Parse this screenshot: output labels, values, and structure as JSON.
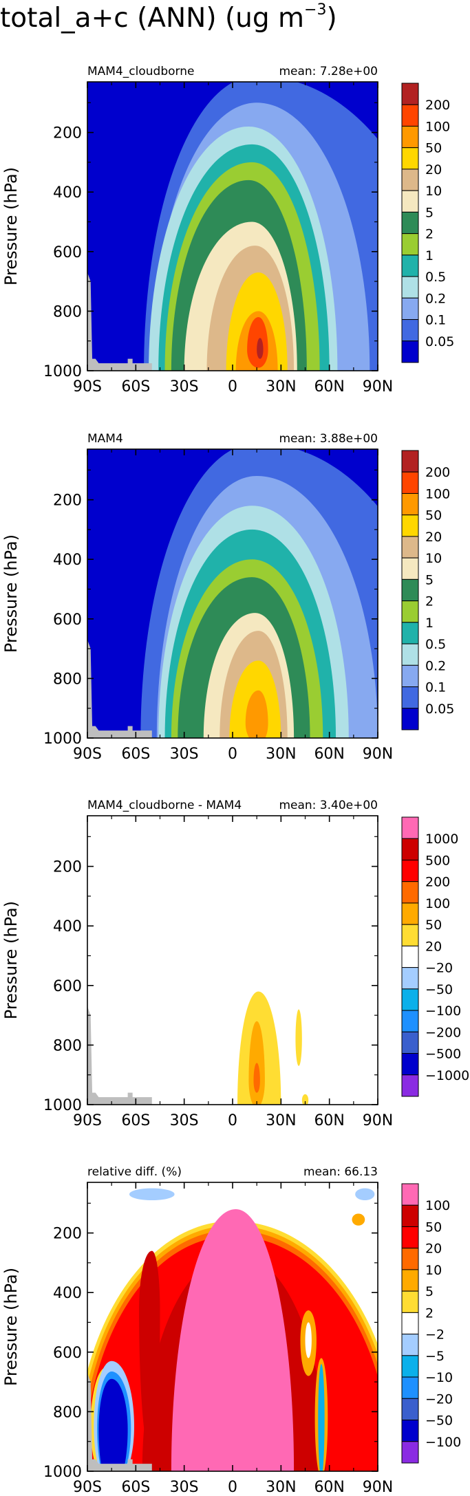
{
  "page": {
    "title_main": "total_a+c (ANN) (ug m",
    "title_sup": "−3",
    "title_close": ")"
  },
  "chart_data": [
    {
      "type": "heatmap",
      "title_left": "MAM4_cloudborne",
      "title_right": "mean:  7.28e+00",
      "ylabel": "Pressure (hPa)",
      "yticks": [
        "200",
        "400",
        "600",
        "800",
        "1000"
      ],
      "ytick_values": [
        200,
        400,
        600,
        800,
        1000
      ],
      "xticks": [
        "90S",
        "60S",
        "30S",
        "0",
        "30N",
        "60N",
        "90N"
      ],
      "xtick_values": [
        -90,
        -60,
        -30,
        0,
        30,
        60,
        90
      ],
      "xlim": [
        -90,
        90
      ],
      "ylim": [
        1000,
        30
      ],
      "legend_labels": [
        "200",
        "100",
        "50",
        "20",
        "10",
        "5",
        "2",
        "1",
        "0.5",
        "0.2",
        "0.1",
        "0.05"
      ],
      "legend_colors": [
        "#b22222",
        "#ff4500",
        "#ff9900",
        "#ffd700",
        "#ddb88a",
        "#f5e8c0",
        "#2e8b57",
        "#9acd32",
        "#20b2aa",
        "#afe0e6",
        "#87a9f0",
        "#4169e1",
        "#0000cd"
      ],
      "background_color": "#0000cd",
      "colors": [
        "#4169e1",
        "#87a9f0",
        "#afe0e6",
        "#20b2aa",
        "#9acd32",
        "#2e8b57",
        "#f5e8c0",
        "#ddb88a",
        "#ffd700",
        "#ff9900",
        "#ff4500",
        "#b22222"
      ],
      "blobs": [
        {
          "lat": 15,
          "p": 1000,
          "wl": 70,
          "wr": 120,
          "up": 990,
          "dn": 100,
          "m": 0
        },
        {
          "lat": 15,
          "p": 1000,
          "wl": 65,
          "wr": 70,
          "up": 900,
          "dn": 100,
          "m": 1
        },
        {
          "lat": 10,
          "p": 1000,
          "wl": 62,
          "wr": 55,
          "up": 820,
          "dn": 100,
          "m": 2
        },
        {
          "lat": 12,
          "p": 1000,
          "wl": 58,
          "wr": 48,
          "up": 760,
          "dn": 100,
          "m": 3
        },
        {
          "lat": 12,
          "p": 1000,
          "wl": 54,
          "wr": 42,
          "up": 700,
          "dn": 100,
          "m": 4
        },
        {
          "lat": 10,
          "p": 1000,
          "wl": 48,
          "wr": 36,
          "up": 640,
          "dn": 100,
          "m": 5
        },
        {
          "lat": 12,
          "p": 1000,
          "wl": 42,
          "wr": 28,
          "up": 500,
          "dn": 100,
          "m": 6
        },
        {
          "lat": 14,
          "p": 1000,
          "wl": 30,
          "wr": 24,
          "up": 420,
          "dn": 100,
          "m": 7
        },
        {
          "lat": 16,
          "p": 1000,
          "wl": 20,
          "wr": 18,
          "up": 330,
          "dn": 100,
          "m": 8
        },
        {
          "lat": 16,
          "p": 1000,
          "wl": 14,
          "wr": 12,
          "up": 200,
          "dn": 100,
          "m": 9
        },
        {
          "lat": 16,
          "p": 930,
          "wl": 7,
          "wr": 6,
          "up": 110,
          "dn": 60,
          "m": 10
        },
        {
          "lat": 17,
          "p": 930,
          "wl": 2,
          "wr": 2,
          "up": 40,
          "dn": 30,
          "m": 11
        }
      ],
      "terrain": [
        [
          -90,
          670
        ],
        [
          -88,
          700
        ],
        [
          -87,
          960
        ],
        [
          -85,
          960
        ],
        [
          -83,
          975
        ],
        [
          -65,
          975
        ],
        [
          -65,
          960
        ],
        [
          -62,
          960
        ],
        [
          -62,
          975
        ],
        [
          -50,
          975
        ],
        [
          -50,
          1000
        ],
        [
          -90,
          1000
        ]
      ]
    },
    {
      "type": "heatmap",
      "title_left": "MAM4",
      "title_right": "mean:  3.88e+00",
      "ylabel": "Pressure (hPa)",
      "yticks": [
        "200",
        "400",
        "600",
        "800",
        "1000"
      ],
      "ytick_values": [
        200,
        400,
        600,
        800,
        1000
      ],
      "xticks": [
        "90S",
        "60S",
        "30S",
        "0",
        "30N",
        "60N",
        "90N"
      ],
      "xtick_values": [
        -90,
        -60,
        -30,
        0,
        30,
        60,
        90
      ],
      "xlim": [
        -90,
        90
      ],
      "ylim": [
        1000,
        30
      ],
      "legend_labels": [
        "200",
        "100",
        "50",
        "20",
        "10",
        "5",
        "2",
        "1",
        "0.5",
        "0.2",
        "0.1",
        "0.05"
      ],
      "legend_colors": [
        "#b22222",
        "#ff4500",
        "#ff9900",
        "#ffd700",
        "#ddb88a",
        "#f5e8c0",
        "#2e8b57",
        "#9acd32",
        "#20b2aa",
        "#afe0e6",
        "#87a9f0",
        "#4169e1",
        "#0000cd"
      ],
      "background_color": "#0000cd",
      "colors": [
        "#4169e1",
        "#87a9f0",
        "#afe0e6",
        "#20b2aa",
        "#9acd32",
        "#2e8b57",
        "#f5e8c0",
        "#ddb88a",
        "#ffd700",
        "#ff9900",
        "#ff4500",
        "#b22222"
      ],
      "blobs": [
        {
          "lat": 15,
          "p": 1000,
          "wl": 72,
          "wr": 120,
          "up": 990,
          "dn": 100,
          "m": 0
        },
        {
          "lat": 15,
          "p": 1000,
          "wl": 62,
          "wr": 75,
          "up": 880,
          "dn": 100,
          "m": 1
        },
        {
          "lat": 12,
          "p": 1000,
          "wl": 58,
          "wr": 60,
          "up": 780,
          "dn": 100,
          "m": 2
        },
        {
          "lat": 12,
          "p": 1000,
          "wl": 54,
          "wr": 52,
          "up": 700,
          "dn": 100,
          "m": 3
        },
        {
          "lat": 12,
          "p": 1000,
          "wl": 50,
          "wr": 44,
          "up": 600,
          "dn": 100,
          "m": 4
        },
        {
          "lat": 12,
          "p": 1000,
          "wl": 46,
          "wr": 36,
          "up": 540,
          "dn": 100,
          "m": 5
        },
        {
          "lat": 14,
          "p": 1000,
          "wl": 32,
          "wr": 24,
          "up": 420,
          "dn": 100,
          "m": 6
        },
        {
          "lat": 16,
          "p": 1000,
          "wl": 24,
          "wr": 18,
          "up": 360,
          "dn": 100,
          "m": 7
        },
        {
          "lat": 16,
          "p": 1000,
          "wl": 18,
          "wr": 14,
          "up": 260,
          "dn": 100,
          "m": 8
        },
        {
          "lat": 16,
          "p": 950,
          "wl": 8,
          "wr": 6,
          "up": 110,
          "dn": 70,
          "m": 9
        }
      ],
      "terrain": [
        [
          -90,
          670
        ],
        [
          -88,
          700
        ],
        [
          -87,
          960
        ],
        [
          -85,
          960
        ],
        [
          -83,
          975
        ],
        [
          -65,
          975
        ],
        [
          -65,
          960
        ],
        [
          -62,
          960
        ],
        [
          -62,
          975
        ],
        [
          -50,
          975
        ],
        [
          -50,
          1000
        ],
        [
          -90,
          1000
        ]
      ]
    },
    {
      "type": "heatmap",
      "title_left": "MAM4_cloudborne - MAM4",
      "title_right": "mean:  3.40e+00",
      "ylabel": "Pressure (hPa)",
      "yticks": [
        "200",
        "400",
        "600",
        "800",
        "1000"
      ],
      "ytick_values": [
        200,
        400,
        600,
        800,
        1000
      ],
      "xticks": [
        "90S",
        "60S",
        "30S",
        "0",
        "30N",
        "60N",
        "90N"
      ],
      "xtick_values": [
        -90,
        -60,
        -30,
        0,
        30,
        60,
        90
      ],
      "xlim": [
        -90,
        90
      ],
      "ylim": [
        1000,
        30
      ],
      "legend_labels": [
        "1000",
        "500",
        "200",
        "100",
        "50",
        "20",
        "−20",
        "−50",
        "−100",
        "−200",
        "−500",
        "−1000"
      ],
      "legend_colors": [
        "#ff69b4",
        "#cd0000",
        "#ff0000",
        "#ff6a00",
        "#ffaa00",
        "#ffdd33",
        "#ffffff",
        "#a4cdff",
        "#0bb0ea",
        "#1e90ff",
        "#3a5fcd",
        "#0000cd",
        "#8a2be2"
      ],
      "background_color": "#ffffff",
      "colors": [
        "#ffdd33",
        "#ffaa00",
        "#ff6a00"
      ],
      "blobs": [
        {
          "lat": 16,
          "p": 1000,
          "wl": 13,
          "wr": 14,
          "up": 380,
          "dn": 100,
          "m": 0
        },
        {
          "lat": 15,
          "p": 920,
          "wl": 5,
          "wr": 5,
          "up": 200,
          "dn": 90,
          "m": 1
        },
        {
          "lat": 15,
          "p": 920,
          "wl": 2,
          "wr": 2,
          "up": 60,
          "dn": 40,
          "m": 2
        },
        {
          "lat": 41,
          "p": 780,
          "wl": 2,
          "wr": 2,
          "up": 100,
          "dn": 90,
          "m": 0
        },
        {
          "lat": 45,
          "p": 985,
          "wl": 2,
          "wr": 2,
          "up": 20,
          "dn": 20,
          "m": 0
        }
      ],
      "terrain": [
        [
          -90,
          670
        ],
        [
          -88,
          700
        ],
        [
          -87,
          960
        ],
        [
          -85,
          960
        ],
        [
          -83,
          975
        ],
        [
          -65,
          975
        ],
        [
          -65,
          960
        ],
        [
          -62,
          960
        ],
        [
          -62,
          975
        ],
        [
          -50,
          975
        ],
        [
          -50,
          1000
        ],
        [
          -90,
          1000
        ]
      ]
    },
    {
      "type": "heatmap",
      "title_left": "relative diff. (%)",
      "title_right": "mean: 66.13",
      "ylabel": "Pressure (hPa)",
      "yticks": [
        "200",
        "400",
        "600",
        "800",
        "1000"
      ],
      "ytick_values": [
        200,
        400,
        600,
        800,
        1000
      ],
      "xticks": [
        "90S",
        "60S",
        "30S",
        "0",
        "30N",
        "60N",
        "90N"
      ],
      "xtick_values": [
        -90,
        -60,
        -30,
        0,
        30,
        60,
        90
      ],
      "xlim": [
        -90,
        90
      ],
      "ylim": [
        1000,
        30
      ],
      "legend_labels": [
        "100",
        "50",
        "20",
        "10",
        "5",
        "2",
        "−2",
        "−5",
        "−10",
        "−20",
        "−50",
        "−100"
      ],
      "legend_colors": [
        "#ff69b4",
        "#cd0000",
        "#ff0000",
        "#ff6a00",
        "#ffaa00",
        "#ffdd33",
        "#ffffff",
        "#a4cdff",
        "#0bb0ea",
        "#1e90ff",
        "#3a5fcd",
        "#0000cd",
        "#8a2be2"
      ],
      "background_color": "#ffffff",
      "colors": [
        "#ffdd33",
        "#ffaa00",
        "#ff6a00",
        "#ff0000",
        "#cd0000",
        "#ff69b4"
      ],
      "blobs": [
        {
          "lat": 0,
          "p": 1000,
          "wl": 98,
          "wr": 104,
          "up": 840,
          "dn": 120,
          "m": 0
        },
        {
          "lat": 0,
          "p": 1000,
          "wl": 96,
          "wr": 102,
          "up": 825,
          "dn": 120,
          "m": 1
        },
        {
          "lat": 0,
          "p": 1000,
          "wl": 94,
          "wr": 100,
          "up": 810,
          "dn": 120,
          "m": 2
        },
        {
          "lat": 0,
          "p": 1000,
          "wl": 92,
          "wr": 98,
          "up": 790,
          "dn": 120,
          "m": 3
        },
        {
          "lat": 2,
          "p": 1000,
          "wl": 58,
          "wr": 56,
          "up": 730,
          "dn": 120,
          "m": 4
        },
        {
          "lat": 2,
          "p": 1000,
          "wl": 40,
          "wr": 36,
          "up": 880,
          "dn": 120,
          "m": 5
        },
        {
          "lat": -78,
          "p": 850,
          "wl": 10,
          "wr": 12,
          "up": 200,
          "dn": 180,
          "m": 0
        },
        {
          "lat": -50,
          "p": 460,
          "wl": 8,
          "wr": 5,
          "up": 200,
          "dn": 500,
          "m": 4
        }
      ],
      "patches": [
        {
          "lat": -75,
          "p": 850,
          "wl": 11,
          "wr": 14,
          "up": 220,
          "dn": 200,
          "color": "#a4cdff"
        },
        {
          "lat": -75,
          "p": 855,
          "wl": 9,
          "wr": 12,
          "up": 190,
          "dn": 200,
          "color": "#1e90ff"
        },
        {
          "lat": -75,
          "p": 860,
          "wl": 8,
          "wr": 10,
          "up": 170,
          "dn": 200,
          "color": "#0000cd"
        },
        {
          "lat": 55,
          "p": 820,
          "wl": 4,
          "wr": 4,
          "up": 200,
          "dn": 200,
          "color": "#ffaa00"
        },
        {
          "lat": 55,
          "p": 820,
          "wl": 2,
          "wr": 2,
          "up": 180,
          "dn": 200,
          "color": "#0bb0ea"
        },
        {
          "lat": 47,
          "p": 560,
          "wl": 5,
          "wr": 5,
          "up": 100,
          "dn": 120,
          "color": "#ffaa00"
        },
        {
          "lat": 47,
          "p": 560,
          "wl": 2,
          "wr": 2,
          "up": 60,
          "dn": 60,
          "color": "#ffffff"
        },
        {
          "lat": -50,
          "p": 70,
          "wl": 14,
          "wr": 14,
          "up": 20,
          "dn": 20,
          "color": "#a4cdff"
        },
        {
          "lat": 82,
          "p": 70,
          "wl": 6,
          "wr": 6,
          "up": 20,
          "dn": 20,
          "color": "#a4cdff"
        },
        {
          "lat": 78,
          "p": 155,
          "wl": 4,
          "wr": 4,
          "up": 20,
          "dn": 20,
          "color": "#ffaa00"
        }
      ],
      "terrain": [
        [
          -90,
          670
        ],
        [
          -88,
          700
        ],
        [
          -87,
          960
        ],
        [
          -85,
          960
        ],
        [
          -83,
          975
        ],
        [
          -65,
          975
        ],
        [
          -65,
          960
        ],
        [
          -62,
          960
        ],
        [
          -62,
          975
        ],
        [
          -50,
          975
        ],
        [
          -50,
          1000
        ],
        [
          -90,
          1000
        ]
      ]
    }
  ]
}
